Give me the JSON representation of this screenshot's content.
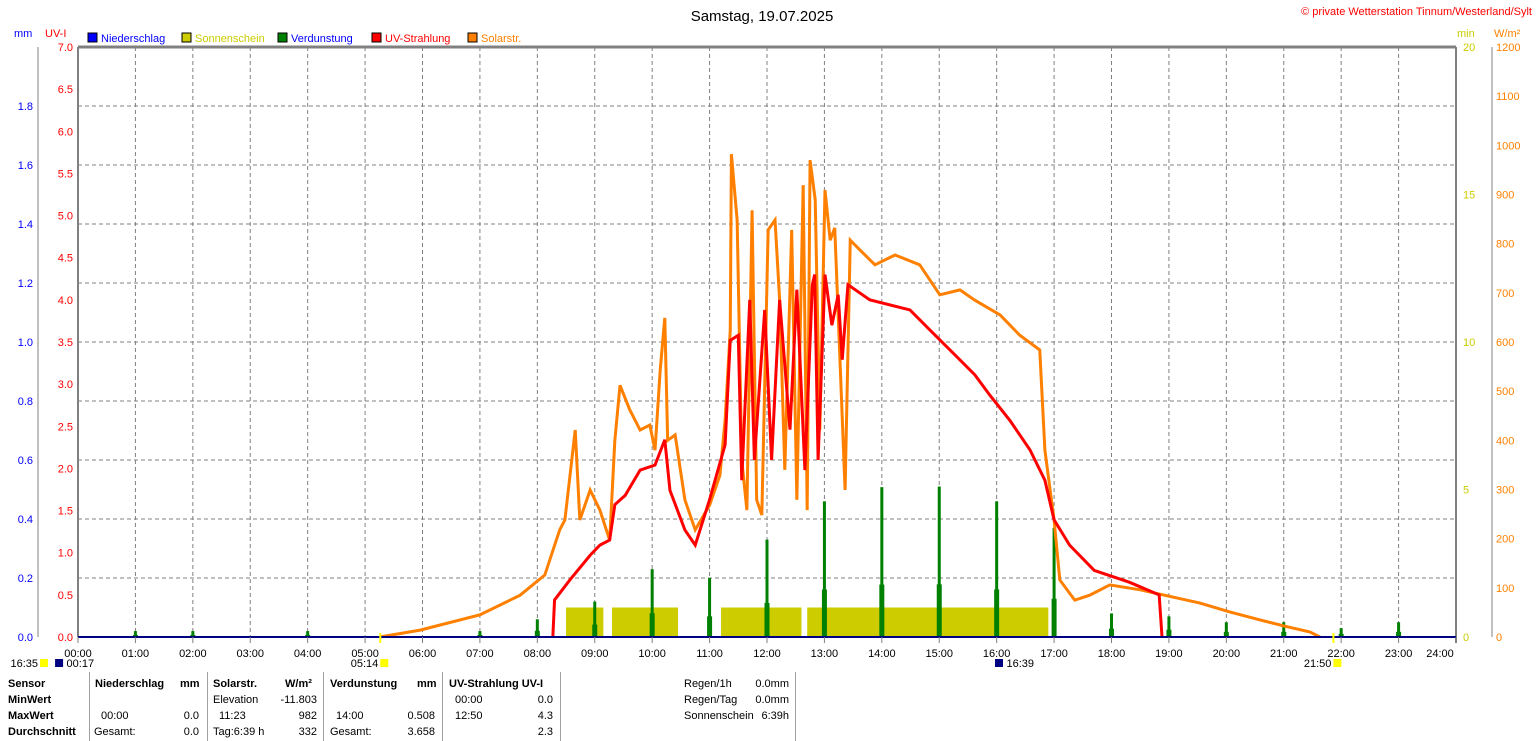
{
  "chart_data": {
    "type": "line",
    "title": "Samstag, 19.07.2025",
    "copyright": "© private Wetterstation Tinnum/Westerland/Sylt",
    "legend": [
      {
        "name": "Niederschlag",
        "color": "#0000ff",
        "text_color": "#0000ff"
      },
      {
        "name": "Sonnenschein",
        "color": "#cccc00",
        "text_color": "#cccc00"
      },
      {
        "name": "Verdunstung",
        "color": "#008000",
        "text_color": "#0000ff"
      },
      {
        "name": "UV-Strahlung",
        "color": "#ff0000",
        "text_color": "#ff0000"
      },
      {
        "name": "Solarstr.",
        "color": "#ff8000",
        "text_color": "#ff8000"
      }
    ],
    "legend_position": "top-left",
    "axes": {
      "x": {
        "ticks": [
          "00:00",
          "01:00",
          "02:00",
          "03:00",
          "04:00",
          "05:00",
          "06:00",
          "07:00",
          "08:00",
          "09:00",
          "10:00",
          "11:00",
          "12:00",
          "13:00",
          "14:00",
          "15:00",
          "16:00",
          "17:00",
          "18:00",
          "19:00",
          "20:00",
          "21:00",
          "22:00",
          "23:00",
          "24:00"
        ],
        "range": [
          0,
          24
        ]
      },
      "mm": {
        "label": "mm",
        "range": [
          0,
          2.0
        ],
        "ticks": [
          "0.0",
          "0.2",
          "0.4",
          "0.6",
          "0.8",
          "1.0",
          "1.2",
          "1.4",
          "1.6",
          "1.8"
        ],
        "color": "#0000ff"
      },
      "uv": {
        "label": "UV-I",
        "range": [
          0,
          7.0
        ],
        "ticks": [
          "0.0",
          "0.5",
          "1.0",
          "1.5",
          "2.0",
          "2.5",
          "3.0",
          "3.5",
          "4.0",
          "4.5",
          "5.0",
          "5.5",
          "6.0",
          "6.5",
          "7.0"
        ],
        "color": "#ff0000"
      },
      "min": {
        "label": "min",
        "range": [
          0,
          20
        ],
        "ticks": [
          "0",
          "5",
          "10",
          "15",
          "20"
        ],
        "color": "#cccc00"
      },
      "wm2": {
        "label": "W/m²",
        "range": [
          0,
          1200
        ],
        "ticks": [
          "0",
          "100",
          "200",
          "300",
          "400",
          "500",
          "600",
          "700",
          "800",
          "900",
          "1000",
          "1100",
          "1200"
        ],
        "color": "#ff8000"
      }
    },
    "grid": true,
    "series": {
      "solar": {
        "name": "Solarstr.",
        "unit": "W/m²",
        "points": [
          [
            5.26,
            0
          ],
          [
            5.96,
            14
          ],
          [
            7.0,
            45
          ],
          [
            7.7,
            85
          ],
          [
            8.13,
            126
          ],
          [
            8.39,
            218
          ],
          [
            8.48,
            238
          ],
          [
            8.66,
            421
          ],
          [
            8.74,
            238
          ],
          [
            8.92,
            299
          ],
          [
            9.09,
            258
          ],
          [
            9.26,
            197
          ],
          [
            9.35,
            400
          ],
          [
            9.44,
            512
          ],
          [
            9.61,
            462
          ],
          [
            9.79,
            421
          ],
          [
            9.96,
            431
          ],
          [
            10.05,
            380
          ],
          [
            10.14,
            543
          ],
          [
            10.22,
            649
          ],
          [
            10.27,
            400
          ],
          [
            10.4,
            411
          ],
          [
            10.57,
            279
          ],
          [
            10.75,
            218
          ],
          [
            11.0,
            268
          ],
          [
            11.18,
            329
          ],
          [
            11.27,
            441
          ],
          [
            11.36,
            624
          ],
          [
            11.38,
            982
          ],
          [
            11.48,
            848
          ],
          [
            11.56,
            360
          ],
          [
            11.65,
            258
          ],
          [
            11.74,
            868
          ],
          [
            11.82,
            279
          ],
          [
            11.91,
            248
          ],
          [
            12.02,
            828
          ],
          [
            12.14,
            848
          ],
          [
            12.22,
            685
          ],
          [
            12.31,
            340
          ],
          [
            12.43,
            828
          ],
          [
            12.52,
            279
          ],
          [
            12.63,
            919
          ],
          [
            12.7,
            258
          ],
          [
            12.75,
            970
          ],
          [
            12.84,
            889
          ],
          [
            12.92,
            421
          ],
          [
            13.01,
            909
          ],
          [
            13.1,
            807
          ],
          [
            13.18,
            832
          ],
          [
            13.36,
            299
          ],
          [
            13.45,
            807
          ],
          [
            13.62,
            787
          ],
          [
            13.88,
            757
          ],
          [
            14.23,
            777
          ],
          [
            14.66,
            757
          ],
          [
            15.01,
            696
          ],
          [
            15.36,
            706
          ],
          [
            15.62,
            685
          ],
          [
            16.06,
            655
          ],
          [
            16.4,
            614
          ],
          [
            16.75,
            584
          ],
          [
            16.84,
            380
          ],
          [
            17.0,
            238
          ],
          [
            17.1,
            116
          ],
          [
            17.36,
            75
          ],
          [
            17.62,
            85
          ],
          [
            17.97,
            106
          ],
          [
            18.5,
            96
          ],
          [
            19.0,
            83
          ],
          [
            19.54,
            69
          ],
          [
            20.06,
            51
          ],
          [
            20.58,
            35
          ],
          [
            21.02,
            22
          ],
          [
            21.46,
            10
          ],
          [
            21.63,
            0
          ]
        ]
      },
      "uv": {
        "name": "UV-Strahlung",
        "unit": "UV-I",
        "points": [
          [
            8.27,
            0
          ],
          [
            8.3,
            0.44
          ],
          [
            8.57,
            0.68
          ],
          [
            8.92,
            0.97
          ],
          [
            9.09,
            1.09
          ],
          [
            9.26,
            1.15
          ],
          [
            9.35,
            1.57
          ],
          [
            9.53,
            1.68
          ],
          [
            9.79,
            1.98
          ],
          [
            10.05,
            2.04
          ],
          [
            10.22,
            2.34
          ],
          [
            10.31,
            1.74
          ],
          [
            10.57,
            1.27
          ],
          [
            10.75,
            1.09
          ],
          [
            11.0,
            1.63
          ],
          [
            11.27,
            2.28
          ],
          [
            11.36,
            3.52
          ],
          [
            11.5,
            3.58
          ],
          [
            11.56,
            1.86
          ],
          [
            11.7,
            4.0
          ],
          [
            11.78,
            2.1
          ],
          [
            11.96,
            3.88
          ],
          [
            12.08,
            2.1
          ],
          [
            12.22,
            4.0
          ],
          [
            12.4,
            2.46
          ],
          [
            12.52,
            4.12
          ],
          [
            12.66,
            1.98
          ],
          [
            12.79,
            4.18
          ],
          [
            12.83,
            4.3
          ],
          [
            12.89,
            2.1
          ],
          [
            13.01,
            4.3
          ],
          [
            13.13,
            3.7
          ],
          [
            13.24,
            4.06
          ],
          [
            13.31,
            3.29
          ],
          [
            13.41,
            4.18
          ],
          [
            13.79,
            4.0
          ],
          [
            14.49,
            3.88
          ],
          [
            14.84,
            3.64
          ],
          [
            15.27,
            3.35
          ],
          [
            15.62,
            3.11
          ],
          [
            15.88,
            2.87
          ],
          [
            16.23,
            2.57
          ],
          [
            16.58,
            2.22
          ],
          [
            16.84,
            1.86
          ],
          [
            17.0,
            1.39
          ],
          [
            17.27,
            1.09
          ],
          [
            17.7,
            0.79
          ],
          [
            18.31,
            0.65
          ],
          [
            18.83,
            0.5
          ],
          [
            18.88,
            0
          ]
        ]
      },
      "evaporation": {
        "name": "Verdunstung",
        "unit": "mm",
        "points": [
          [
            1,
            0.02
          ],
          [
            2,
            0.02
          ],
          [
            4,
            0.02
          ],
          [
            7,
            0.02
          ],
          [
            8,
            0.06
          ],
          [
            9,
            0.12
          ],
          [
            10,
            0.23
          ],
          [
            11,
            0.2
          ],
          [
            12,
            0.33
          ],
          [
            13,
            0.46
          ],
          [
            14,
            0.508
          ],
          [
            15,
            0.51
          ],
          [
            16,
            0.46
          ],
          [
            17,
            0.37
          ],
          [
            18,
            0.08
          ],
          [
            19,
            0.07
          ],
          [
            20,
            0.05
          ],
          [
            21,
            0.05
          ],
          [
            22,
            0.03
          ],
          [
            23,
            0.05
          ]
        ]
      },
      "sunshine": {
        "name": "Sonnenschein",
        "unit": "min",
        "value": 1.0,
        "intervals": [
          [
            8.5,
            9.15
          ],
          [
            9.3,
            10.45
          ],
          [
            11.2,
            12.6
          ],
          [
            12.7,
            16.9
          ]
        ]
      },
      "precipitation": {
        "name": "Niederschlag",
        "unit": "mm",
        "value": 0.0
      }
    },
    "astro_markers": [
      {
        "label": "16:35",
        "icon": "moon-icon",
        "t": -1.1
      },
      {
        "label": "00:17",
        "icon": "moonset-icon",
        "t": 0.28
      },
      {
        "label": "05:14",
        "icon": "sunrise-icon",
        "t": 5.23
      },
      {
        "label": "16:39",
        "icon": "moonrise-icon",
        "t": 16.65
      },
      {
        "label": "21:50",
        "icon": "sunset-icon",
        "t": 21.83
      }
    ]
  },
  "table": {
    "headers": {
      "sensor": "Sensor",
      "niederschlag": "Niederschlag",
      "nied_unit": "mm",
      "solar": "Solarstr.",
      "solar_unit": "W/m²",
      "verd": "Verdunstung",
      "verd_unit": "mm",
      "uv": "UV-Strahlung UV-I"
    },
    "rows": {
      "min": {
        "label": "MinWert",
        "solar_time": "Elevation",
        "solar_val": "-11.803",
        "uv_time": "00:00",
        "uv_val": "0.0"
      },
      "max": {
        "label": "MaxWert",
        "nied_time": "00:00",
        "nied_val": "0.0",
        "solar_time": "11:23",
        "solar_val": "982",
        "verd_time": "14:00",
        "verd_val": "0.508",
        "uv_time": "12:50",
        "uv_val": "4.3"
      },
      "avg": {
        "label": "Durchschnitt",
        "nied_time": "Gesamt:",
        "nied_val": "0.0",
        "solar_time": "Tag:6:39 h",
        "solar_val": "332",
        "verd_time": "Gesamt:",
        "verd_val": "3.658",
        "uv_val": "2.3"
      }
    },
    "summary": [
      {
        "label": "Regen/1h",
        "value": "0.0mm"
      },
      {
        "label": "Regen/Tag",
        "value": "0.0mm"
      },
      {
        "label": "Sonnenschein",
        "value": "6:39h"
      }
    ]
  }
}
